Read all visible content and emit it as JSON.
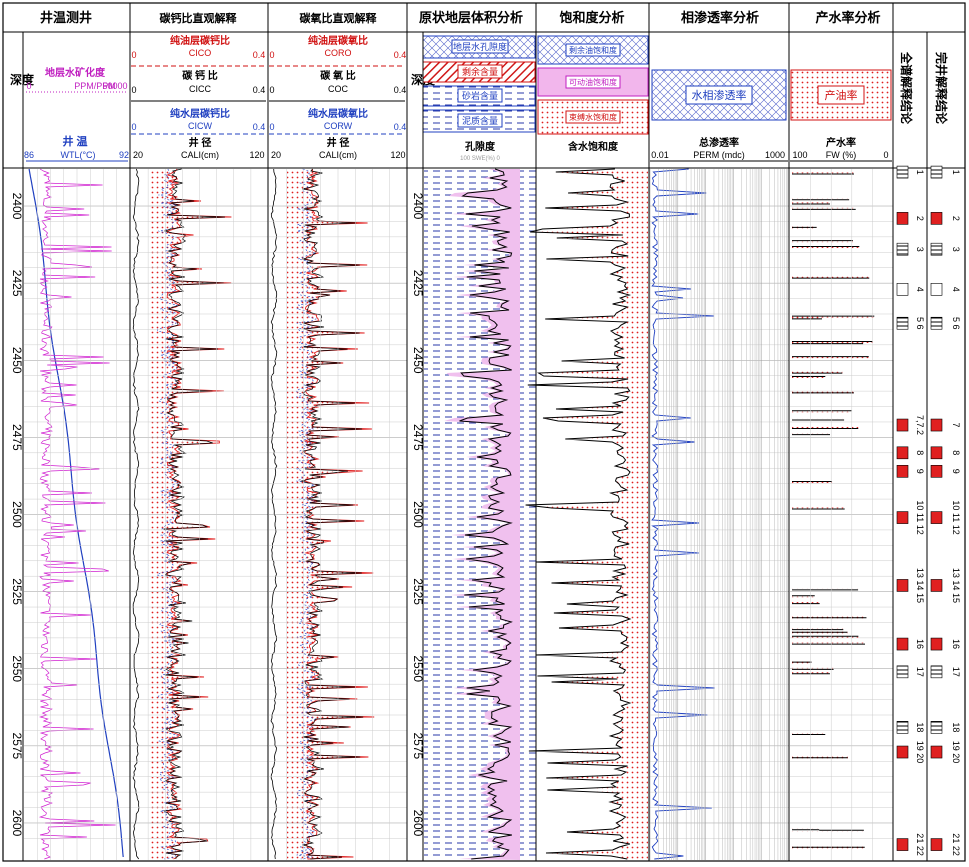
{
  "columns": {
    "temperature": "井温测井",
    "cocal": "碳钙比直观解释",
    "cooxy": "碳氧比直观解释",
    "volume": "原状地层体积分析",
    "saturation": "饱和度分析",
    "permeability": "相渗透率分析",
    "water_rate": "产水率分析",
    "full_interp": "全谱解释结论",
    "complete_interp": "完井解释结论"
  },
  "depth_label": "深度",
  "track1": {
    "salinity_name": "地层水矿化度",
    "salinity_unit": "PPM/PPM",
    "salinity_min": "0",
    "salinity_max": "50000",
    "wt_name": "井 温",
    "wt_unit": "WTL(°C)",
    "wt_min": "86",
    "wt_max": "92"
  },
  "track2": {
    "oil_name": "纯油层碳钙比",
    "oil_mnem": "CICO",
    "c_name": "碳 钙 比",
    "c_mnem": "CICC",
    "w_name": "纯水层碳钙比",
    "w_mnem": "CICW",
    "min": "0",
    "max": "0.4",
    "cali_name": "井 径",
    "cali_mnem": "CALI(cm)",
    "cali_min": "20",
    "cali_max": "120"
  },
  "track3": {
    "oil_name": "纯油层碳氧比",
    "oil_mnem": "CORO",
    "c_name": "碳 氧 比",
    "c_mnem": "COC",
    "w_name": "纯水层碳氧比",
    "w_mnem": "CORW",
    "min": "0",
    "max": "0.4",
    "cali_name": "井 径",
    "cali_mnem": "CALI(cm)",
    "cali_min": "20",
    "cali_max": "120"
  },
  "track4": {
    "legend": [
      "地层水孔隙度",
      "剩余含量",
      "砂岩含量",
      "泥质含量"
    ],
    "curve": "孔隙度",
    "curve_sub": "100 SWE(%) 0"
  },
  "track5": {
    "legend": [
      "剩余油饱和度",
      "可动油饱和度",
      "束缚水饱和度"
    ],
    "curve": "含水饱和度"
  },
  "track6": {
    "legend": "水相渗透率",
    "curve": "总渗透率",
    "unit": "PERM (mdc)",
    "min": "0.01",
    "max": "1000"
  },
  "track7": {
    "legend": "产油率",
    "curve": "产水率",
    "unit": "FW (%)",
    "min": "100",
    "max": "0"
  },
  "depth_ticks": [
    "2400",
    "2425",
    "2450",
    "2475",
    "2500",
    "2525",
    "2550",
    "2575",
    "2600"
  ],
  "full_layers": [
    "1",
    "2",
    "3",
    "4",
    "5 6",
    "7,7.2",
    "8",
    "9",
    "10 11 12",
    "13 14 15",
    "16",
    "17",
    "18",
    "19 20",
    "21 22"
  ],
  "complete_layers": [
    "1",
    "2",
    "3",
    "4",
    "5 6",
    "7",
    "8",
    "9",
    "10 11 12",
    "13 14 15",
    "16",
    "17",
    "18",
    "19 20",
    "21 22"
  ]
}
